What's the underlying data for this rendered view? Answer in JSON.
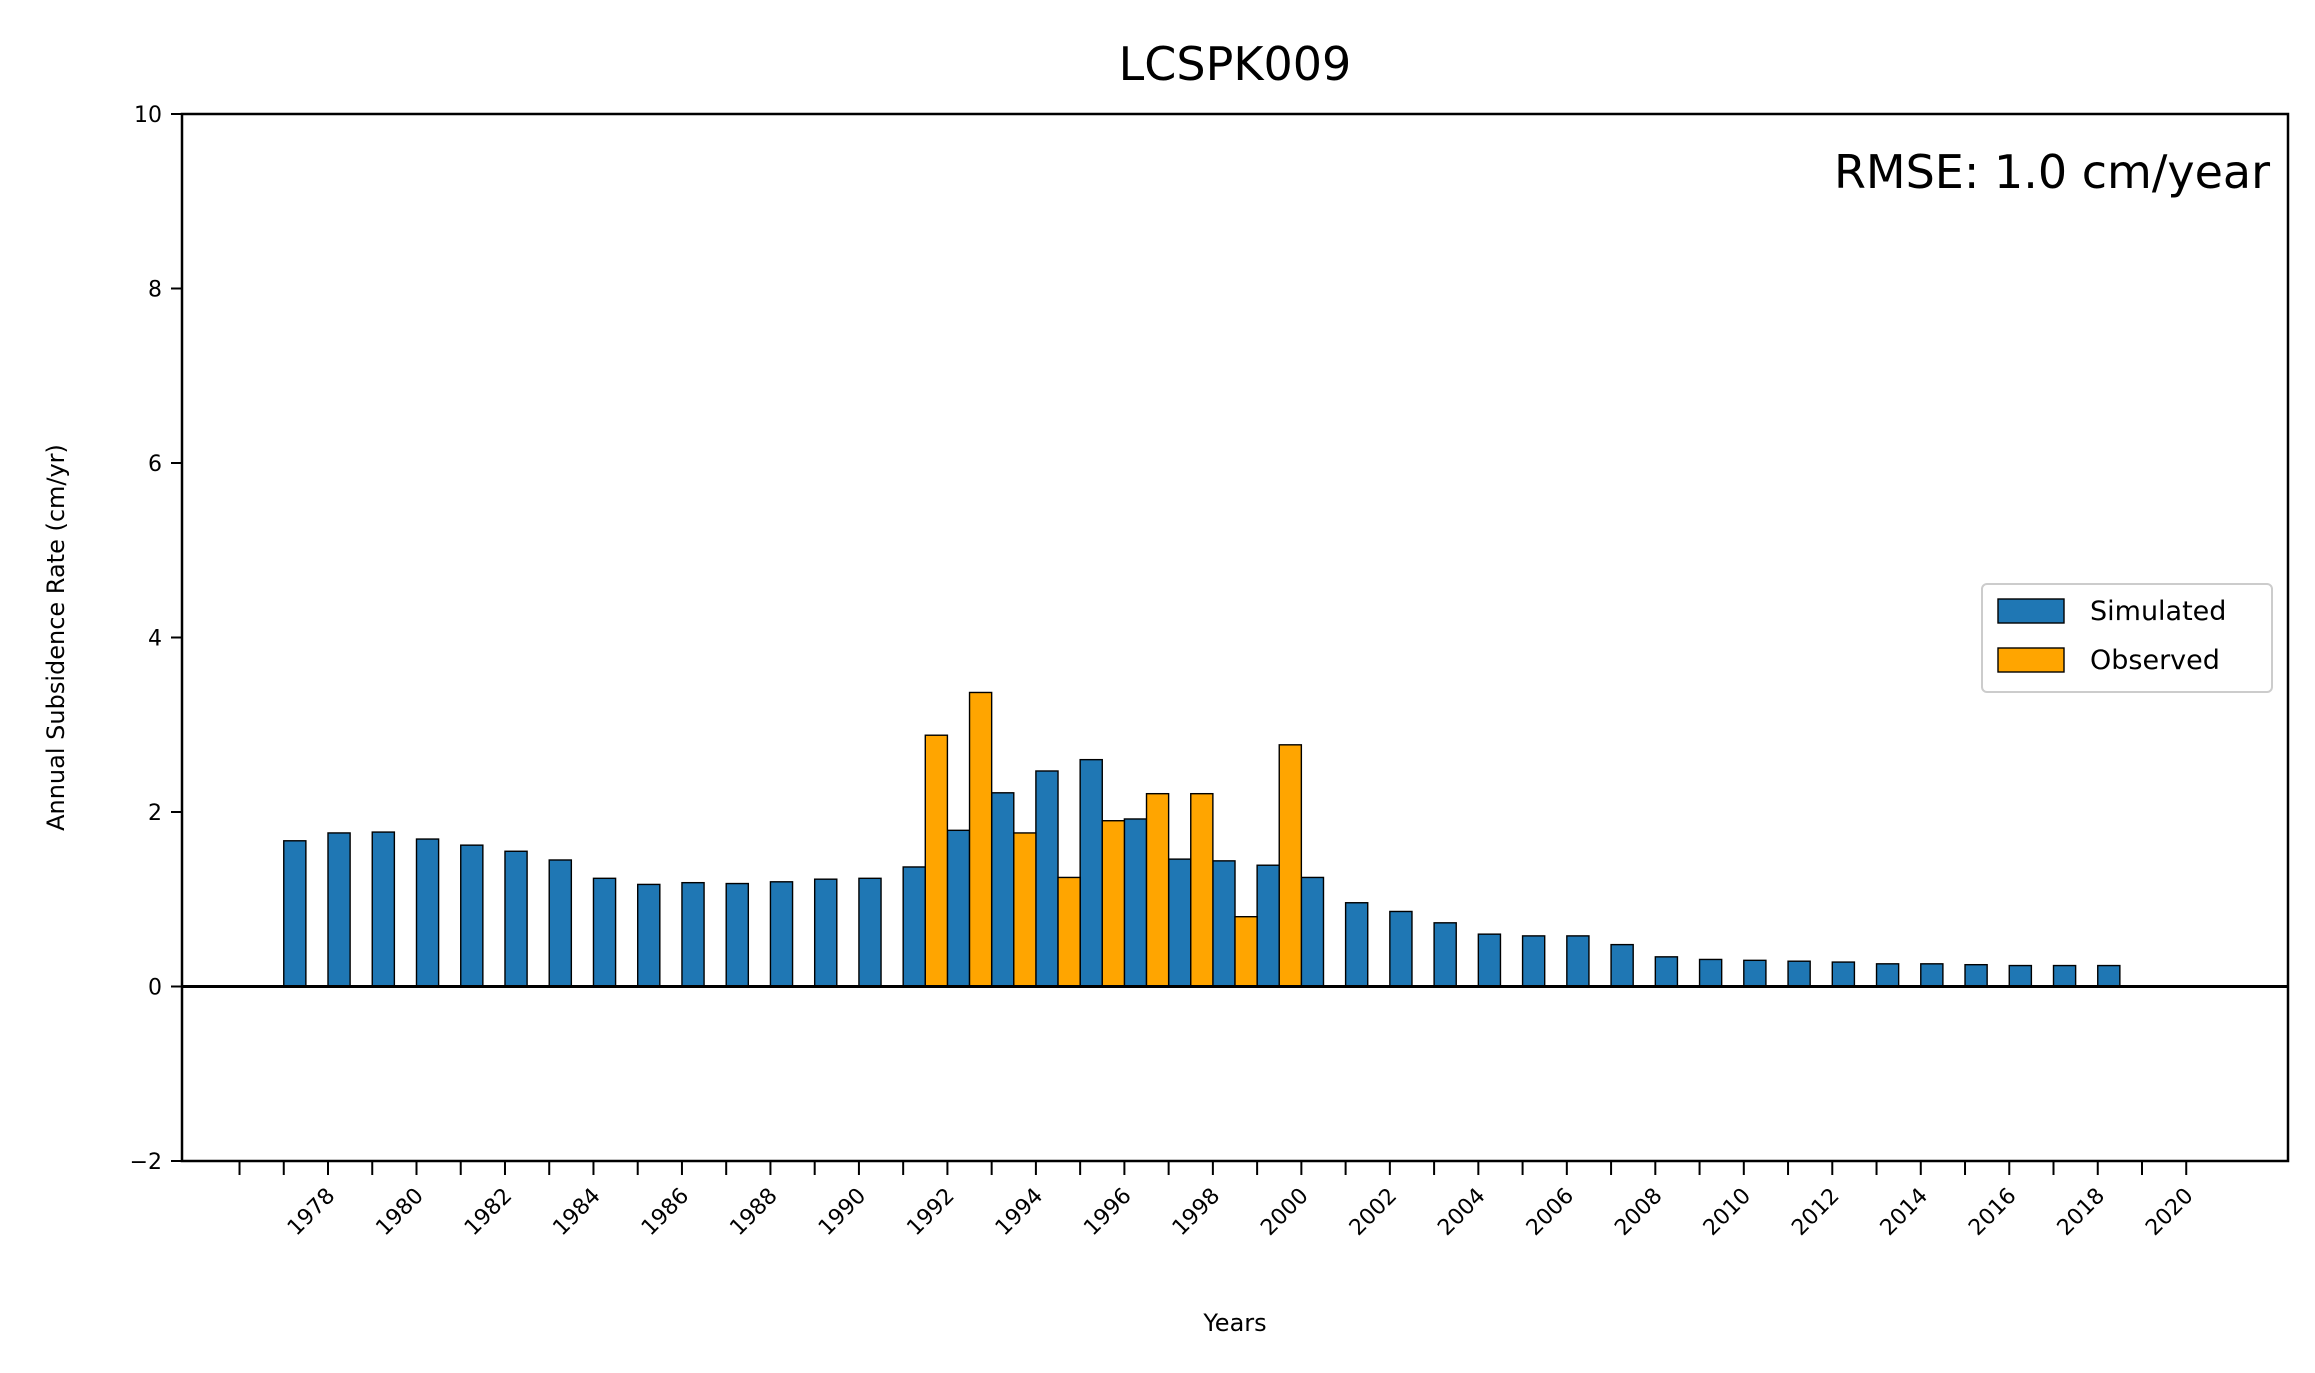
{
  "chart_data": {
    "type": "bar",
    "title": "LCSPK009",
    "xlabel": "Years",
    "ylabel": "Annual Subsidence Rate (cm/yr)",
    "ylim": [
      -2,
      10
    ],
    "yticks": [
      -2,
      0,
      2,
      4,
      6,
      8,
      10
    ],
    "xlim": [
      1974.7,
      2022.3
    ],
    "xticks": [
      1978,
      1980,
      1982,
      1984,
      1986,
      1988,
      1990,
      1992,
      1994,
      1996,
      1998,
      2000,
      2002,
      2004,
      2006,
      2008,
      2010,
      2012,
      2014,
      2016,
      2018,
      2020
    ],
    "minor_xtick_step": 1,
    "bar_width": 0.5,
    "annotation": "RMSE: 1.0 cm/year",
    "legend_position": "center-right",
    "grid": false,
    "series": [
      {
        "name": "Simulated",
        "color": "#1f77b4",
        "x": [
          1977,
          1978,
          1979,
          1980,
          1981,
          1982,
          1983,
          1984,
          1985,
          1986,
          1987,
          1988,
          1989,
          1990,
          1991,
          1992,
          1993,
          1994,
          1995,
          1996,
          1997,
          1998,
          1999,
          2000,
          2001,
          2002,
          2003,
          2004,
          2005,
          2006,
          2007,
          2008,
          2009,
          2010,
          2011,
          2012,
          2013,
          2014,
          2015,
          2016,
          2017,
          2018
        ],
        "values": [
          1.67,
          1.76,
          1.77,
          1.69,
          1.62,
          1.55,
          1.45,
          1.24,
          1.17,
          1.19,
          1.18,
          1.2,
          1.23,
          1.24,
          1.37,
          1.79,
          2.22,
          2.47,
          2.6,
          1.92,
          1.46,
          1.44,
          1.39,
          1.25,
          0.96,
          0.86,
          0.73,
          0.6,
          0.58,
          0.58,
          0.48,
          0.34,
          0.31,
          0.3,
          0.29,
          0.28,
          0.26,
          0.26,
          0.25,
          0.24,
          0.24,
          0.24
        ]
      },
      {
        "name": "Observed",
        "color": "#ffa500",
        "x": [
          1992,
          1993,
          1994,
          1995,
          1996,
          1997,
          1998,
          1999,
          2000
        ],
        "values": [
          2.88,
          3.37,
          1.76,
          1.25,
          1.9,
          2.21,
          2.21,
          0.8,
          2.77
        ]
      }
    ]
  }
}
